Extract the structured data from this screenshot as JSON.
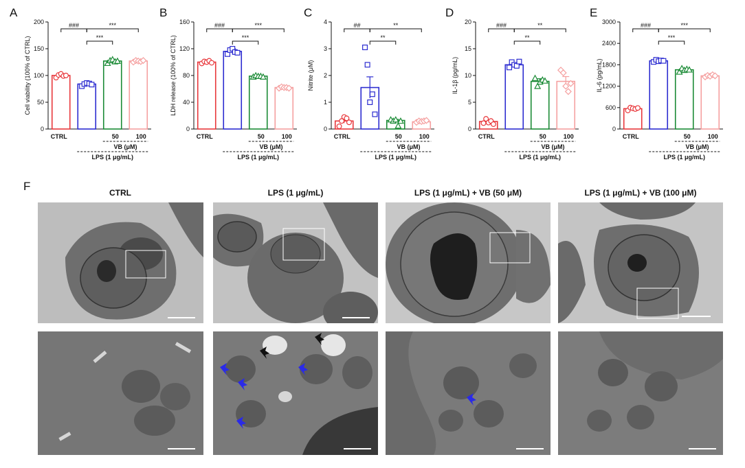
{
  "panel_letters": {
    "a": "A",
    "b": "B",
    "c": "C",
    "d": "D",
    "e": "E",
    "f": "F"
  },
  "colors": {
    "ctrl": "#e8373b",
    "lps": "#2b2bd0",
    "vb50": "#1a8a35",
    "vb100": "#f5a0a0",
    "em_bg": "#8a8a8a"
  },
  "chart_data": [
    {
      "type": "bar",
      "id": "A",
      "ylabel": "Cell viability (100% of CTRL)",
      "ylim": [
        0,
        200
      ],
      "yticks": [
        0,
        50,
        100,
        150,
        200
      ],
      "categories": [
        "CTRL",
        "",
        "50",
        "100"
      ],
      "values": [
        100,
        84,
        127,
        127
      ],
      "errors": [
        3,
        3,
        3,
        1.5
      ],
      "points": [
        [
          96,
          101,
          103,
          99,
          100
        ],
        [
          80,
          84,
          86,
          85,
          83
        ],
        [
          123,
          128,
          130,
          126,
          127
        ],
        [
          125,
          128,
          127,
          126,
          128
        ]
      ],
      "vb_label": "VB (μM)",
      "lps_label": "LPS (1 μg/mL)",
      "annotations": [
        {
          "from": 0,
          "to": 1,
          "text": "###",
          "level": 0
        },
        {
          "from": 1,
          "to": 3,
          "text": "***",
          "level": 0
        },
        {
          "from": 1,
          "to": 2,
          "text": "***",
          "level": 1
        }
      ]
    },
    {
      "type": "bar",
      "id": "B",
      "ylabel": "LDH release (100% of CTRL)",
      "ylim": [
        0,
        160
      ],
      "yticks": [
        0,
        40,
        80,
        120,
        160
      ],
      "categories": [
        "CTRL",
        "",
        "50",
        "100"
      ],
      "values": [
        100,
        116,
        79,
        62
      ],
      "errors": [
        2,
        4,
        1.5,
        1
      ],
      "points": [
        [
          98,
          101,
          100,
          102,
          99
        ],
        [
          112,
          118,
          120,
          115,
          114
        ],
        [
          78,
          80,
          79,
          79,
          78
        ],
        [
          61,
          63,
          62,
          62,
          61
        ]
      ],
      "vb_label": "VB (μM)",
      "lps_label": "LPS (1 μg/mL)",
      "annotations": [
        {
          "from": 0,
          "to": 1,
          "text": "###",
          "level": 0
        },
        {
          "from": 1,
          "to": 3,
          "text": "***",
          "level": 0
        },
        {
          "from": 1,
          "to": 2,
          "text": "***",
          "level": 1
        }
      ]
    },
    {
      "type": "bar",
      "id": "C",
      "ylabel": "Nitrite (μM)",
      "ylim": [
        0,
        4
      ],
      "yticks": [
        0,
        1,
        2,
        3,
        4
      ],
      "categories": [
        "CTRL",
        "",
        "50",
        "100"
      ],
      "values": [
        0.3,
        1.55,
        0.32,
        0.27
      ],
      "errors": [
        0.08,
        0.4,
        0.04,
        0.04
      ],
      "points": [
        [
          0.1,
          0.3,
          0.45,
          0.4,
          0.25
        ],
        [
          3.05,
          2.4,
          1.0,
          1.3,
          0.55
        ],
        [
          0.35,
          0.3,
          0.35,
          0.12,
          0.3
        ],
        [
          0.25,
          0.3,
          0.28,
          0.3,
          0.32
        ]
      ],
      "vb_label": "VB (μM)",
      "lps_label": "LPS (1 μg/mL)",
      "annotations": [
        {
          "from": 0,
          "to": 1,
          "text": "##",
          "level": 0
        },
        {
          "from": 1,
          "to": 3,
          "text": "**",
          "level": 0
        },
        {
          "from": 1,
          "to": 2,
          "text": "**",
          "level": 1
        }
      ]
    },
    {
      "type": "bar",
      "id": "D",
      "ylabel": "IL-1β (pg/mL)",
      "ylim": [
        0,
        20
      ],
      "yticks": [
        0,
        5,
        10,
        15,
        20
      ],
      "categories": [
        "CTRL",
        "",
        "50",
        "100"
      ],
      "values": [
        1.4,
        12.0,
        8.9,
        8.9
      ],
      "errors": [
        0.3,
        0.3,
        0.5,
        0.9
      ],
      "points": [
        [
          1.1,
          1.9,
          1.2,
          1.5,
          0.9
        ],
        [
          11.5,
          12.5,
          12.0,
          11.8,
          12.6
        ],
        [
          9.5,
          8.0,
          8.8,
          9.2,
          9.0
        ],
        [
          11.0,
          10.5,
          8.0,
          7.0,
          8.5
        ]
      ],
      "vb_label": "VB (μM)",
      "lps_label": "LPS (1 μg/mL)",
      "annotations": [
        {
          "from": 0,
          "to": 1,
          "text": "###",
          "level": 0
        },
        {
          "from": 1,
          "to": 3,
          "text": "**",
          "level": 0
        },
        {
          "from": 1,
          "to": 2,
          "text": "**",
          "level": 1
        }
      ]
    },
    {
      "type": "bar",
      "id": "E",
      "ylabel": "IL-6 (pg/mL)",
      "ylim": [
        0,
        3000
      ],
      "yticks": [
        0,
        600,
        1200,
        1800,
        2400,
        3000
      ],
      "categories": [
        "CTRL",
        "",
        "50",
        "100"
      ],
      "values": [
        570,
        1910,
        1660,
        1490
      ],
      "errors": [
        40,
        40,
        40,
        40
      ],
      "points": [
        [
          520,
          600,
          580,
          560,
          590
        ],
        [
          1880,
          1940,
          1900,
          1920,
          1910
        ],
        [
          1600,
          1700,
          1650,
          1680,
          1660
        ],
        [
          1460,
          1500,
          1480,
          1520,
          1490
        ]
      ],
      "vb_label": "VB (μM)",
      "lps_label": "LPS (1 μg/mL)",
      "annotations": [
        {
          "from": 0,
          "to": 1,
          "text": "###",
          "level": 0
        },
        {
          "from": 1,
          "to": 3,
          "text": "***",
          "level": 0
        },
        {
          "from": 1,
          "to": 2,
          "text": "***",
          "level": 1
        }
      ]
    }
  ],
  "em": {
    "titles": [
      "CTRL",
      "LPS (1 μg/mL)",
      "LPS (1 μg/mL) + VB (50 μM)",
      "LPS (1 μg/mL) + VB (100 μM)"
    ],
    "arrows": {
      "lps_blue": 5,
      "lps_black": 2,
      "vb50_blue": 1
    }
  }
}
